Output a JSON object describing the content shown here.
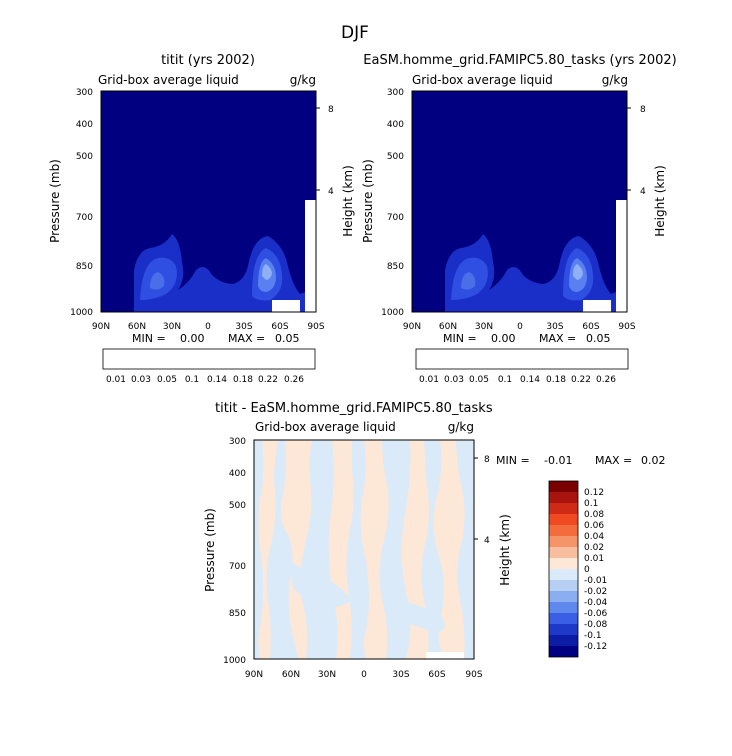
{
  "page_title": "DJF",
  "colors": {
    "background": "#010080",
    "cbar1": [
      "#0a0a85",
      "#1c1cb8",
      "#2d3ee0",
      "#4262f0",
      "#6f8ef5",
      "#a4bcf7",
      "#dbe6fb",
      "#fde8d8",
      "#f8c2a5",
      "#f09a76",
      "#e56a4b",
      "#cf3425",
      "#a9140f",
      "#7a0000"
    ],
    "cbar2": [
      "#0a0a85",
      "#1c1cb8",
      "#2d3ee0",
      "#4262f0",
      "#6f8ef5",
      "#a4bcf7",
      "#dbe6fb",
      "#fde8d8",
      "#f8c2a5",
      "#f09a76",
      "#e56a4b",
      "#cf3425",
      "#a9140f",
      "#7a0000"
    ],
    "diff_pos": "#fde8d8",
    "diff_neg": "#dbeaf8"
  },
  "chart_data": [
    {
      "type": "heatmap",
      "title": "titit (yrs 2002)",
      "subtitle_left": "Grid-box average liquid",
      "subtitle_right": "g/kg",
      "ylabel": "Pressure (mb)",
      "ylabel_right": "Height (km)",
      "x_ticks": [
        "90N",
        "60N",
        "30N",
        "0",
        "30S",
        "60S",
        "90S"
      ],
      "x_values": [
        90,
        60,
        30,
        0,
        -30,
        -60,
        -90
      ],
      "y_ticks": [
        "300",
        "400",
        "500",
        "700",
        "850",
        "1000"
      ],
      "y_values": [
        300,
        400,
        500,
        700,
        850,
        1000
      ],
      "y_scale": "log",
      "right_ticks": [
        "8",
        "4"
      ],
      "stats": {
        "min_label": "MIN =",
        "min": "0.00",
        "max_label": "MAX =",
        "max": "0.05"
      },
      "colorbar_labels": [
        "0.01",
        "0.03",
        "0.05",
        "0.1",
        "0.14",
        "0.18",
        "0.22",
        "0.26"
      ]
    },
    {
      "type": "heatmap",
      "title": "EaSM.homme_grid.FAMIPC5.80_tasks (yrs 2002)",
      "subtitle_left": "Grid-box average liquid",
      "subtitle_right": "g/kg",
      "ylabel": "Pressure (mb)",
      "ylabel_right": "Height (km)",
      "x_ticks": [
        "90N",
        "60N",
        "30N",
        "0",
        "30S",
        "60S",
        "90S"
      ],
      "x_values": [
        90,
        60,
        30,
        0,
        -30,
        -60,
        -90
      ],
      "y_ticks": [
        "300",
        "400",
        "500",
        "700",
        "850",
        "1000"
      ],
      "y_values": [
        300,
        400,
        500,
        700,
        850,
        1000
      ],
      "y_scale": "log",
      "right_ticks": [
        "8",
        "4"
      ],
      "stats": {
        "min_label": "MIN =",
        "min": "0.00",
        "max_label": "MAX =",
        "max": "0.05"
      },
      "colorbar_labels": [
        "0.01",
        "0.03",
        "0.05",
        "0.1",
        "0.14",
        "0.18",
        "0.22",
        "0.26"
      ]
    },
    {
      "type": "heatmap",
      "title": "titit - EaSM.homme_grid.FAMIPC5.80_tasks",
      "subtitle_left": "Grid-box average liquid",
      "subtitle_right": "g/kg",
      "ylabel": "Pressure (mb)",
      "ylabel_right": "Height (km)",
      "x_ticks": [
        "90N",
        "60N",
        "30N",
        "0",
        "30S",
        "60S",
        "90S"
      ],
      "x_values": [
        90,
        60,
        30,
        0,
        -30,
        -60,
        -90
      ],
      "y_ticks": [
        "300",
        "400",
        "500",
        "700",
        "850",
        "1000"
      ],
      "y_values": [
        300,
        400,
        500,
        700,
        850,
        1000
      ],
      "y_scale": "log",
      "right_ticks": [
        "8",
        "4"
      ],
      "stats": {
        "min_label": "MIN =",
        "min": "-0.01",
        "max_label": "MAX =",
        "max": "0.02"
      },
      "colorbar_labels": [
        "0.12",
        "0.1",
        "0.08",
        "0.06",
        "0.04",
        "0.02",
        "0.01",
        "0",
        "-0.01",
        "-0.02",
        "-0.04",
        "-0.06",
        "-0.08",
        "-0.1",
        "-0.12"
      ]
    }
  ]
}
